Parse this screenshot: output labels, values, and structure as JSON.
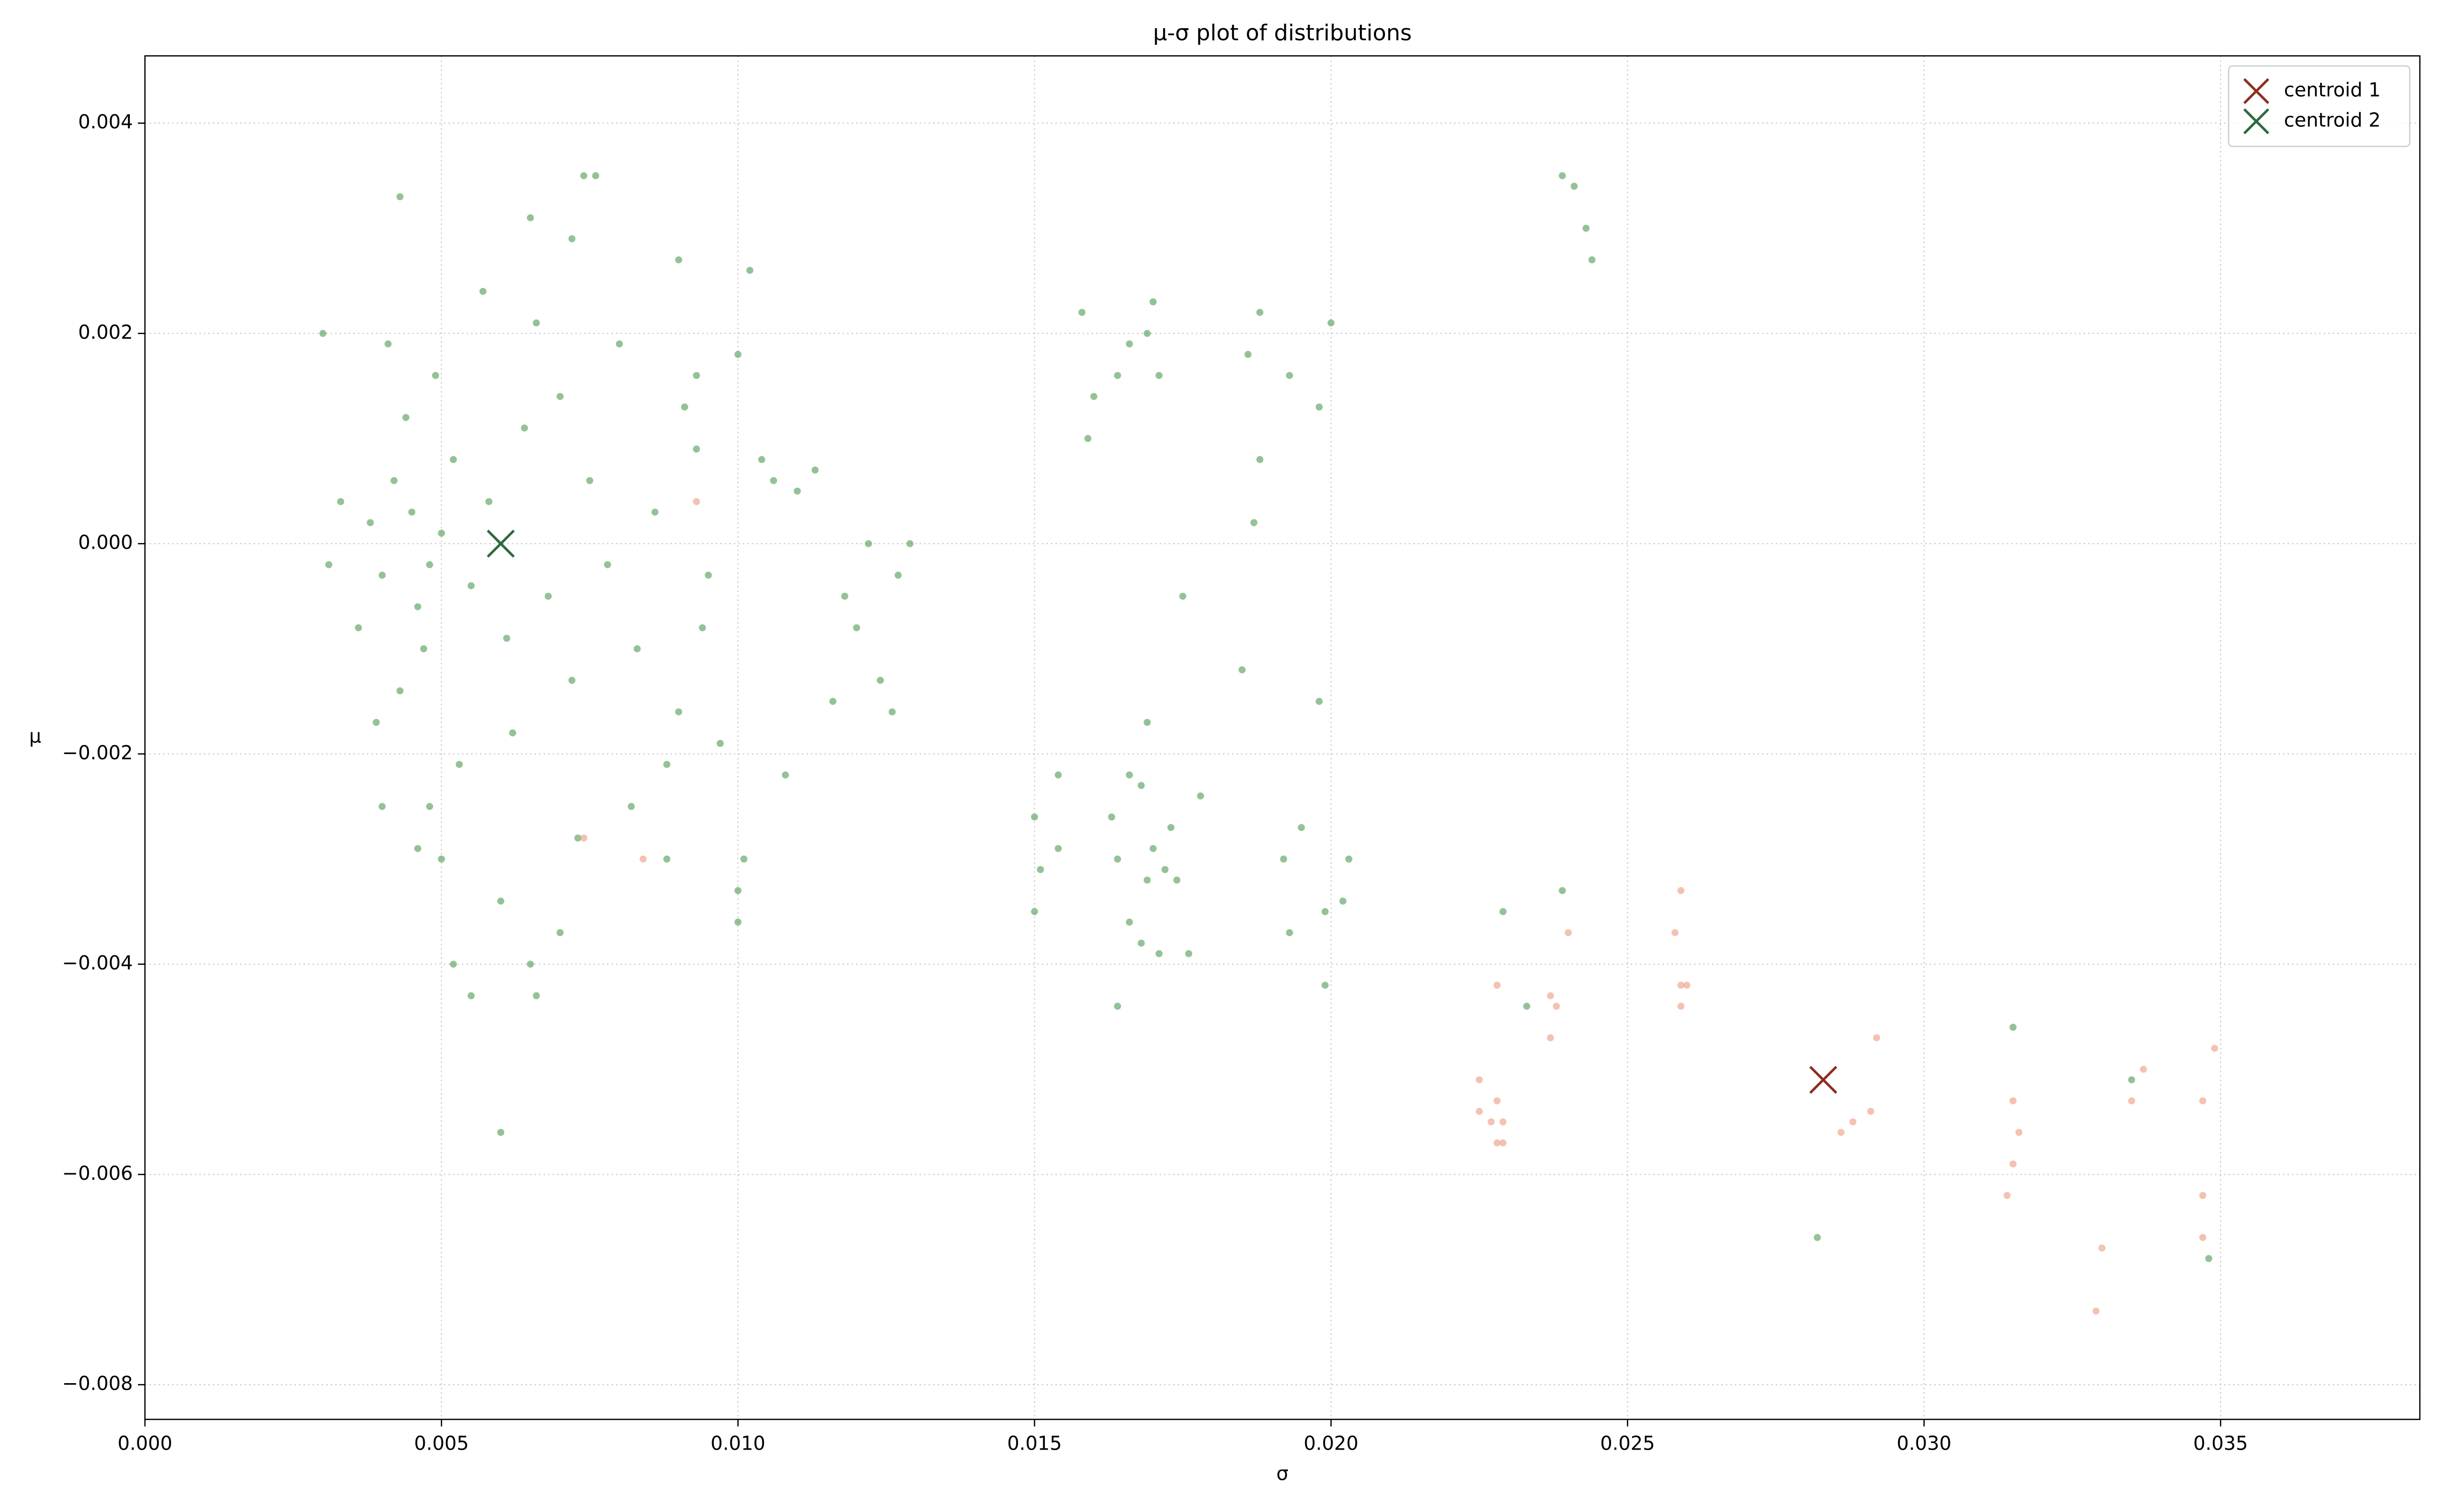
{
  "chart_data": {
    "type": "scatter",
    "title": "μ-σ plot of distributions",
    "x_label": "σ",
    "y_label": "μ",
    "xlim": [
      0,
      0.03836
    ],
    "ylim": [
      -0.00833,
      0.00464
    ],
    "xticks": [
      {
        "value": 0,
        "label": "0.000"
      },
      {
        "value": 0.005,
        "label": "0.005"
      },
      {
        "value": 0.01,
        "label": "0.010"
      },
      {
        "value": 0.015,
        "label": "0.015"
      },
      {
        "value": 0.02,
        "label": "0.020"
      },
      {
        "value": 0.025,
        "label": "0.025"
      },
      {
        "value": 0.03,
        "label": "0.030"
      },
      {
        "value": 0.035,
        "label": "0.035"
      }
    ],
    "yticks": [
      {
        "value": -0.008,
        "label": "−0.008"
      },
      {
        "value": -0.006,
        "label": "−0.006"
      },
      {
        "value": -0.004,
        "label": "−0.004"
      },
      {
        "value": -0.002,
        "label": "−0.002"
      },
      {
        "value": 0,
        "label": "0.000"
      },
      {
        "value": 0.002,
        "label": "0.002"
      },
      {
        "value": 0.004,
        "label": "0.004"
      }
    ],
    "grid": true,
    "legend": "upper right",
    "series": [
      {
        "color": "#4c9a52",
        "marker": "o",
        "x": [
          0.0045,
          0.0048,
          0.0042,
          0.005,
          0.0046,
          0.004,
          0.0052,
          0.0044,
          0.0047,
          0.0055,
          0.0038,
          0.0058,
          0.0043,
          0.0049,
          0.0036,
          0.0061,
          0.0064,
          0.0068,
          0.007,
          0.0072,
          0.0075,
          0.0078,
          0.008,
          0.0083,
          0.0086,
          0.009,
          0.0093,
          0.0095,
          0.0066,
          0.0062,
          0.0057,
          0.0053,
          0.0041,
          0.0039,
          0.0033,
          0.0031,
          0.003,
          0.0043,
          0.0074,
          0.0076,
          0.0072,
          0.0065,
          0.0048,
          0.0046,
          0.005,
          0.004,
          0.0073,
          0.007,
          0.0065,
          0.0066,
          0.0055,
          0.0052,
          0.006,
          0.006,
          0.0088,
          0.0082,
          0.0097,
          0.009,
          0.0102,
          0.01,
          0.0104,
          0.0106,
          0.011,
          0.0108,
          0.0101,
          0.01,
          0.01,
          0.0113,
          0.0118,
          0.012,
          0.0122,
          0.0124,
          0.0127,
          0.0129,
          0.0126,
          0.0116,
          0.0093,
          0.0094,
          0.0091,
          0.0088,
          0.0158,
          0.016,
          0.0159,
          0.0166,
          0.017,
          0.0169,
          0.0171,
          0.0164,
          0.0186,
          0.0188,
          0.0193,
          0.02,
          0.0198,
          0.0188,
          0.0187,
          0.0175,
          0.0185,
          0.0198,
          0.015,
          0.0151,
          0.015,
          0.0154,
          0.0154,
          0.0163,
          0.0164,
          0.0166,
          0.0168,
          0.0169,
          0.017,
          0.0172,
          0.0173,
          0.0174,
          0.0166,
          0.0168,
          0.0171,
          0.0176,
          0.0178,
          0.0164,
          0.0169,
          0.0192,
          0.0195,
          0.0193,
          0.0199,
          0.0202,
          0.0203,
          0.0199,
          0.0229,
          0.0233,
          0.0239,
          0.0239,
          0.0241,
          0.0243,
          0.0244,
          0.0315,
          0.0282,
          0.0348,
          0.0335
        ],
        "values": [
          0.0003,
          -0.0002,
          0.0006,
          0.0001,
          -0.0006,
          -0.0003,
          0.0008,
          0.0012,
          -0.001,
          -0.0004,
          0.0002,
          0.0004,
          -0.0014,
          0.0016,
          -0.0008,
          -0.0009,
          0.0011,
          -0.0005,
          0.0014,
          -0.0013,
          0.0006,
          -0.0002,
          0.0019,
          -0.001,
          0.0003,
          -0.0016,
          0.0009,
          -0.0003,
          0.0021,
          -0.0018,
          0.0024,
          -0.0021,
          0.0019,
          -0.0017,
          0.0004,
          -0.0002,
          0.002,
          0.0033,
          0.0035,
          0.0035,
          0.0029,
          0.0031,
          -0.0025,
          -0.0029,
          -0.003,
          -0.0025,
          -0.0028,
          -0.0037,
          -0.004,
          -0.0043,
          -0.0043,
          -0.004,
          -0.0034,
          -0.0056,
          -0.003,
          -0.0025,
          -0.0019,
          0.0027,
          0.0026,
          0.0018,
          0.0008,
          0.0006,
          0.0005,
          -0.0022,
          -0.003,
          -0.0033,
          -0.0036,
          0.0007,
          -0.0005,
          -0.0008,
          0,
          -0.0013,
          -0.0003,
          0,
          -0.0016,
          -0.0015,
          0.0016,
          -0.0008,
          0.0013,
          -0.0021,
          0.0022,
          0.0014,
          0.001,
          0.0019,
          0.0023,
          0.002,
          0.0016,
          0.0016,
          0.0018,
          0.0022,
          0.0016,
          0.0021,
          0.0013,
          0.0008,
          0.0002,
          -0.0005,
          -0.0012,
          -0.0015,
          -0.0026,
          -0.0031,
          -0.0035,
          -0.0029,
          -0.0022,
          -0.0026,
          -0.003,
          -0.0022,
          -0.0023,
          -0.0032,
          -0.0029,
          -0.0031,
          -0.0027,
          -0.0032,
          -0.0036,
          -0.0038,
          -0.0039,
          -0.0039,
          -0.0024,
          -0.0044,
          -0.0017,
          -0.003,
          -0.0027,
          -0.0037,
          -0.0035,
          -0.0034,
          -0.003,
          -0.0042,
          -0.0035,
          -0.0044,
          -0.0033,
          0.0035,
          0.0034,
          0.003,
          0.0027,
          -0.0046,
          -0.0066,
          -0.0068,
          -0.0051
        ]
      },
      {
        "color": "#ec9a7e",
        "marker": "o",
        "x": [
          0.0093,
          0.0074,
          0.0084,
          0.0225,
          0.0225,
          0.0227,
          0.0228,
          0.0228,
          0.0229,
          0.0229,
          0.0228,
          0.0237,
          0.0238,
          0.0237,
          0.024,
          0.0258,
          0.0259,
          0.0259,
          0.026,
          0.0259,
          0.0286,
          0.0288,
          0.0291,
          0.0292,
          0.0315,
          0.0315,
          0.0316,
          0.0314,
          0.033,
          0.0329,
          0.0335,
          0.0337,
          0.0347,
          0.0347,
          0.0347,
          0.0349
        ],
        "values": [
          0.0004,
          -0.0028,
          -0.003,
          -0.0051,
          -0.0054,
          -0.0055,
          -0.0053,
          -0.0057,
          -0.0057,
          -0.0055,
          -0.0042,
          -0.0043,
          -0.0044,
          -0.0047,
          -0.0037,
          -0.0037,
          -0.0033,
          -0.0042,
          -0.0042,
          -0.0044,
          -0.0056,
          -0.0055,
          -0.0054,
          -0.0047,
          -0.0053,
          -0.0059,
          -0.0056,
          -0.0062,
          -0.0067,
          -0.0073,
          -0.0053,
          -0.005,
          -0.0053,
          -0.0062,
          -0.0066,
          -0.0048
        ]
      },
      {
        "name": "centroid 1",
        "color": "#8b2e1e",
        "marker": "x",
        "x": [
          0.0283
        ],
        "values": [
          -0.0051
        ]
      },
      {
        "name": "centroid 2",
        "color": "#2b6a3e",
        "marker": "x",
        "x": [
          0.006
        ],
        "values": [
          0
        ]
      }
    ]
  }
}
